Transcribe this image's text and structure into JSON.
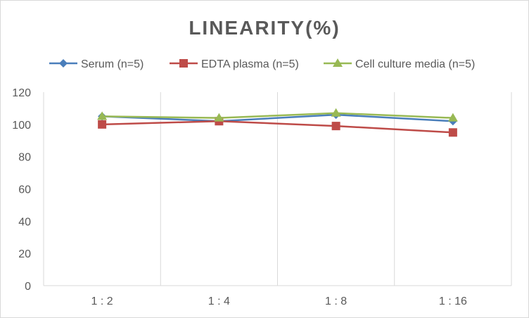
{
  "chart_data": {
    "type": "line",
    "title": "LINEARITY(%)",
    "xlabel": "",
    "ylabel": "",
    "categories": [
      "1:2",
      "1:4",
      "1:8",
      "1:16"
    ],
    "ylim": [
      0,
      120
    ],
    "yticks": [
      0,
      20,
      40,
      60,
      80,
      100,
      120
    ],
    "grid": "vertical",
    "legend_position": "top",
    "series": [
      {
        "name": "Serum (n=5)",
        "values": [
          105,
          102,
          106,
          102
        ],
        "color": "#4a7ebb",
        "marker": "diamond"
      },
      {
        "name": "EDTA plasma (n=5)",
        "values": [
          100,
          102,
          99,
          95
        ],
        "color": "#be4b48",
        "marker": "square"
      },
      {
        "name": "Cell culture media (n=5)",
        "values": [
          105,
          104,
          107,
          104
        ],
        "color": "#98b954",
        "marker": "triangle"
      }
    ]
  }
}
